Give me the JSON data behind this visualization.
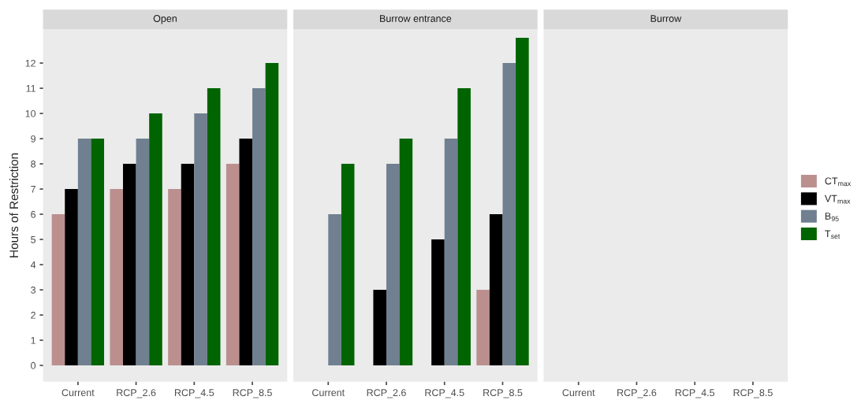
{
  "chart_data": [
    {
      "type": "bar",
      "title": "Open",
      "ylabel": "Hours of Restriction",
      "categories": [
        "Current",
        "RCP_2.6",
        "RCP_4.5",
        "RCP_8.5"
      ],
      "ylim": [
        -0.65,
        13.35
      ],
      "yticks": [
        0,
        1,
        2,
        3,
        4,
        5,
        6,
        7,
        8,
        9,
        10,
        11,
        12
      ],
      "grid": false,
      "legend": "right",
      "series": [
        {
          "name": "CT$_{max}$",
          "color": "#bc8f8f",
          "values": [
            6,
            7,
            7,
            8
          ]
        },
        {
          "name": "VT$_{max}$",
          "color": "#000000",
          "values": [
            7,
            8,
            8,
            9
          ]
        },
        {
          "name": "B$_{95}$",
          "color": "#708090",
          "values": [
            9,
            9,
            10,
            11
          ]
        },
        {
          "name": "T$_{set}$",
          "color": "#006400",
          "values": [
            9,
            10,
            11,
            12
          ]
        }
      ]
    },
    {
      "type": "bar",
      "title": "Burrow entrance",
      "categories": [
        "Current",
        "RCP_2.6",
        "RCP_4.5",
        "RCP_8.5"
      ],
      "ylim": [
        -0.65,
        13.35
      ],
      "yticks": [
        0,
        1,
        2,
        3,
        4,
        5,
        6,
        7,
        8,
        9,
        10,
        11,
        12
      ],
      "grid": false,
      "tick_labels": "x",
      "series": [
        {
          "color": "#bc8f8f",
          "values": [
            null,
            null,
            null,
            3
          ]
        },
        {
          "color": "#000000",
          "values": [
            null,
            3,
            5,
            6
          ]
        },
        {
          "color": "#708090",
          "values": [
            6,
            8,
            9,
            12
          ]
        },
        {
          "color": "#006400",
          "values": [
            8,
            9,
            11,
            13
          ]
        }
      ]
    },
    {
      "type": "bar",
      "title": "Burrow",
      "categories": [
        "Current",
        "RCP_2.6",
        "RCP_4.5",
        "RCP_8.5"
      ],
      "ylim": [
        -0.65,
        13.35
      ],
      "yticks": [
        0,
        1,
        2,
        3,
        4,
        5,
        6,
        7,
        8,
        9,
        10,
        11,
        12
      ],
      "grid": false,
      "tick_labels": "x",
      "series": [
        {
          "color": "#bc8f8f",
          "values": [
            null,
            null,
            null,
            null
          ]
        },
        {
          "color": "#000000",
          "values": [
            null,
            null,
            null,
            null
          ]
        },
        {
          "color": "#708090",
          "values": [
            null,
            null,
            null,
            null
          ]
        },
        {
          "color": "#006400",
          "values": [
            null,
            null,
            null,
            null
          ]
        }
      ]
    }
  ]
}
